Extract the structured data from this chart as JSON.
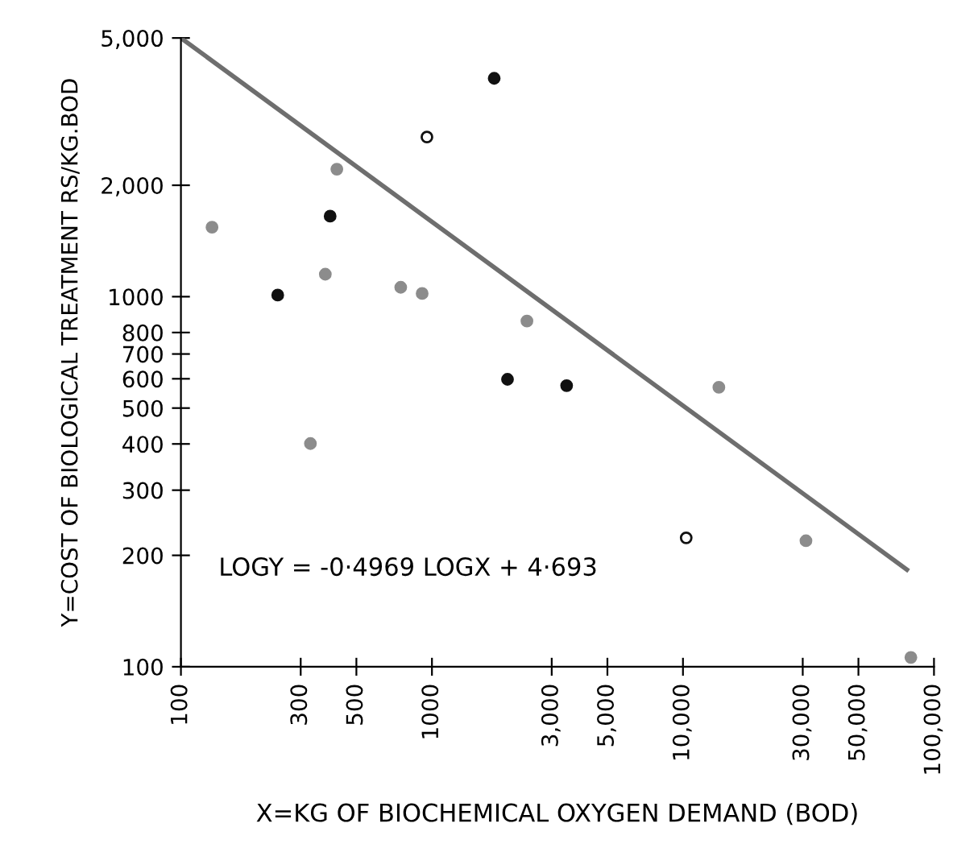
{
  "chart_data": {
    "type": "scatter",
    "log": "xy",
    "xlabel": "X=KG OF BIOCHEMICAL OXYGEN DEMAND (BOD)",
    "ylabel": "Y=COST OF BIOLOGICAL TREATMENT RS/KG.BOD",
    "xlim": [
      100,
      100000
    ],
    "ylim": [
      100,
      5000
    ],
    "xticks": [
      100,
      {
        "value": 300,
        "label": "300"
      },
      500,
      1000,
      {
        "value": 3000,
        "label": "3,000"
      },
      {
        "value": 5000,
        "label": "5,000"
      },
      {
        "value": 10000,
        "label": "10,000"
      },
      {
        "value": 30000,
        "label": "30,000"
      },
      {
        "value": 50000,
        "label": "50,000"
      },
      {
        "value": 100000,
        "label": "100,000"
      }
    ],
    "yticks": [
      100,
      200,
      300,
      400,
      500,
      600,
      700,
      800,
      1000,
      {
        "value": 2000,
        "label": "2,000"
      },
      {
        "value": 5000,
        "label": "5,000"
      }
    ],
    "marker": "circle",
    "grid": false,
    "legend": false,
    "annotations": [
      "LOGY = -0·4969 LOGX + 4·693"
    ],
    "series": [
      {
        "color": "#111111",
        "x": [
          243,
          393,
          1770,
          2000,
          3440
        ],
        "values": [
          1010,
          1650,
          3890,
          598,
          575
        ]
      },
      {
        "color": "#8c8c8c",
        "x": [
          133,
          328,
          376,
          418,
          751,
          914,
          2390,
          13900,
          30900,
          80900
        ],
        "values": [
          1540,
          401,
          1150,
          2210,
          1060,
          1020,
          859,
          569,
          219,
          106
        ]
      },
      {
        "color": "#ffffff",
        "x": [
          955,
          10300
        ],
        "values": [
          2700,
          223
        ]
      },
      {
        "type": "line",
        "marker": "none",
        "color": "#6e6e6e",
        "x": [
          100,
          78000
        ],
        "values": [
          5000,
          183
        ]
      }
    ]
  }
}
